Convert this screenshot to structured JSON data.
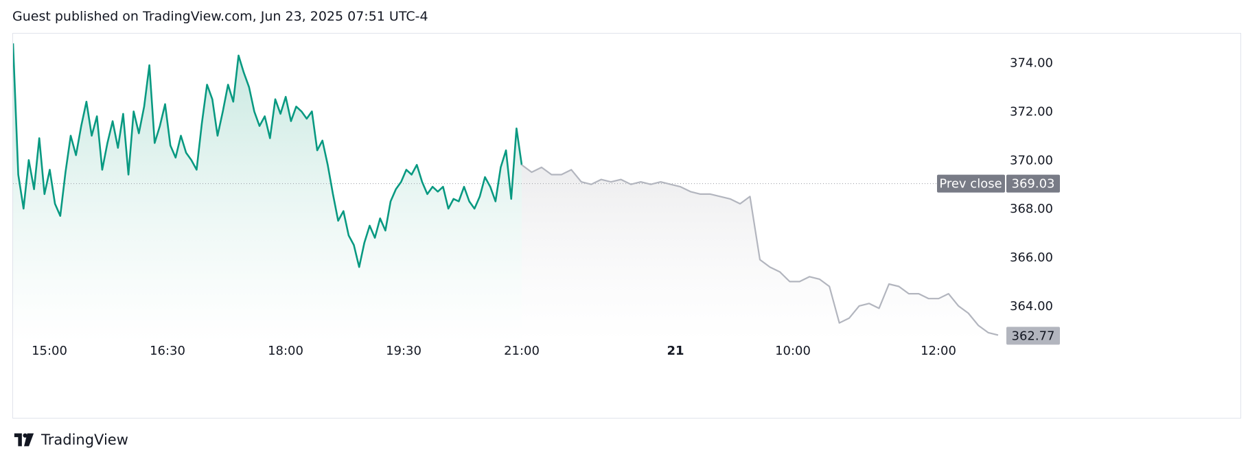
{
  "header": {
    "text": "Guest published on TradingView.com, Jun 23, 2025 07:51 UTC-4"
  },
  "footer": {
    "brand": "TradingView",
    "logo_icon": "tradingview-logo-icon"
  },
  "colors": {
    "session": "#089981",
    "session_fill_top": "#b2dfd4",
    "extended": "#b2b5be",
    "extended_fill_top": "#e8e8ea",
    "prev_close_tag": "#787b86",
    "last_price_tag": "#b2b5be",
    "prev_close_line": "#9598a1"
  },
  "chart_data": {
    "type": "line",
    "ylim": [
      362.5,
      375.2
    ],
    "y_ticks": [
      "374.00",
      "372.00",
      "370.00",
      "368.00",
      "366.00",
      "364.00"
    ],
    "x_ticks": [
      {
        "label": "15:00",
        "bold": false
      },
      {
        "label": "16:30",
        "bold": false
      },
      {
        "label": "18:00",
        "bold": false
      },
      {
        "label": "19:30",
        "bold": false
      },
      {
        "label": "21:00",
        "bold": false
      },
      {
        "label": "21",
        "bold": true
      },
      {
        "label": "10:00",
        "bold": false
      },
      {
        "label": "12:00",
        "bold": false
      }
    ],
    "prev_close": {
      "label": "Prev close",
      "value": 369.03,
      "value_label": "369.03"
    },
    "last_price": {
      "value": 362.77,
      "label": "362.77"
    },
    "series": [
      {
        "segment": "regular-session",
        "values": [
          374.8,
          369.4,
          368.0,
          370.0,
          368.8,
          370.9,
          368.6,
          369.6,
          368.2,
          367.7,
          369.5,
          371.0,
          370.2,
          371.4,
          372.4,
          371.0,
          371.8,
          369.6,
          370.7,
          371.6,
          370.5,
          371.9,
          369.4,
          372.0,
          371.1,
          372.2,
          373.9,
          370.7,
          371.4,
          372.3,
          370.6,
          370.1,
          371.0,
          370.3,
          370.0,
          369.6,
          371.5,
          373.1,
          372.5,
          371.0,
          372.0,
          373.1,
          372.4,
          374.3,
          373.6,
          373.0,
          372.0,
          371.4,
          371.8,
          370.9,
          372.5,
          371.9,
          372.6,
          371.6,
          372.2,
          372.0,
          371.7,
          372.0,
          370.4,
          370.8,
          369.8,
          368.6,
          367.5,
          367.9,
          366.9,
          366.5,
          365.6,
          366.6,
          367.3,
          366.8,
          367.6,
          367.1,
          368.3,
          368.8,
          369.1,
          369.6,
          369.4,
          369.8,
          369.1,
          368.6,
          368.9,
          368.7,
          368.9,
          368.0,
          368.4,
          368.3,
          368.9,
          368.3,
          368.0,
          368.5,
          369.3,
          368.9,
          368.3,
          369.7,
          370.4,
          368.4,
          371.3,
          369.8
        ]
      },
      {
        "segment": "extended-hours",
        "values": [
          369.8,
          369.5,
          369.7,
          369.4,
          369.4,
          369.6,
          369.1,
          369.0,
          369.2,
          369.1,
          369.2,
          369.0,
          369.1,
          369.0,
          369.1,
          369.0,
          368.9,
          368.7,
          368.6,
          368.6,
          368.5,
          368.4,
          368.2,
          368.5,
          365.9,
          365.6,
          365.4,
          365.0,
          365.0,
          365.2,
          365.1,
          364.8,
          363.3,
          363.5,
          364.0,
          364.1,
          363.9,
          364.9,
          364.8,
          364.5,
          364.5,
          364.3,
          364.3,
          364.5,
          364.0,
          363.7,
          363.2,
          362.9,
          362.8
        ]
      }
    ]
  }
}
